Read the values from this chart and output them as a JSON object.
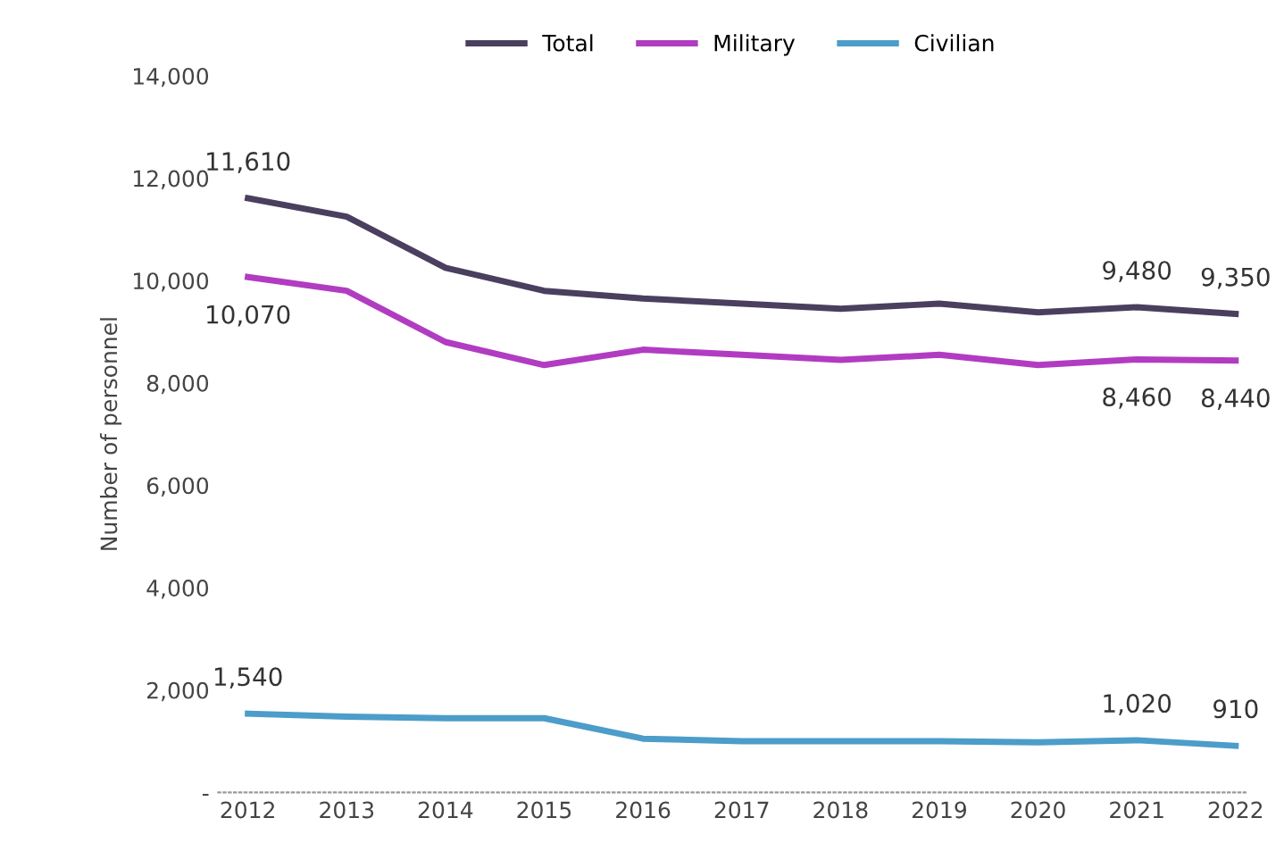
{
  "chart_data": {
    "type": "line",
    "ylabel": "Number of personnel",
    "categories": [
      "2012",
      "2013",
      "2014",
      "2015",
      "2016",
      "2017",
      "2018",
      "2019",
      "2020",
      "2021",
      "2022"
    ],
    "series": [
      {
        "name": "Total",
        "color": "#4b3f5f",
        "values": [
          11610,
          11250,
          10250,
          9800,
          9650,
          9550,
          9450,
          9550,
          9380,
          9480,
          9350
        ]
      },
      {
        "name": "Military",
        "color": "#b13cc2",
        "values": [
          10070,
          9800,
          8800,
          8350,
          8650,
          8550,
          8450,
          8550,
          8350,
          8460,
          8440
        ]
      },
      {
        "name": "Civilian",
        "color": "#4c9dc9",
        "values": [
          1540,
          1480,
          1450,
          1450,
          1050,
          1000,
          1000,
          1000,
          980,
          1020,
          910
        ]
      }
    ],
    "ylim": [
      0,
      14000
    ],
    "yticks": [
      {
        "value": 0,
        "label": "-"
      },
      {
        "value": 2000,
        "label": "2,000"
      },
      {
        "value": 4000,
        "label": "4,000"
      },
      {
        "value": 6000,
        "label": "6,000"
      },
      {
        "value": 8000,
        "label": "8,000"
      },
      {
        "value": 10000,
        "label": "10,000"
      },
      {
        "value": 12000,
        "label": "12,000"
      },
      {
        "value": 14000,
        "label": "14,000"
      }
    ],
    "annotations": [
      {
        "text": "11,610",
        "x": "2012",
        "y": 11610
      },
      {
        "text": "10,070",
        "x": "2012",
        "y": 10070
      },
      {
        "text": "1,540",
        "x": "2012",
        "y": 1540
      },
      {
        "text": "9,480",
        "x": "2021",
        "y": 9480
      },
      {
        "text": "9,350",
        "x": "2022",
        "y": 9350
      },
      {
        "text": "8,460",
        "x": "2021",
        "y": 8460
      },
      {
        "text": "8,440",
        "x": "2022",
        "y": 8440
      },
      {
        "text": "1,020",
        "x": "2021",
        "y": 1020
      },
      {
        "text": "910",
        "x": "2022",
        "y": 910
      }
    ],
    "grid": false,
    "legend": "top",
    "marker": "none",
    "line_style": "solid"
  }
}
